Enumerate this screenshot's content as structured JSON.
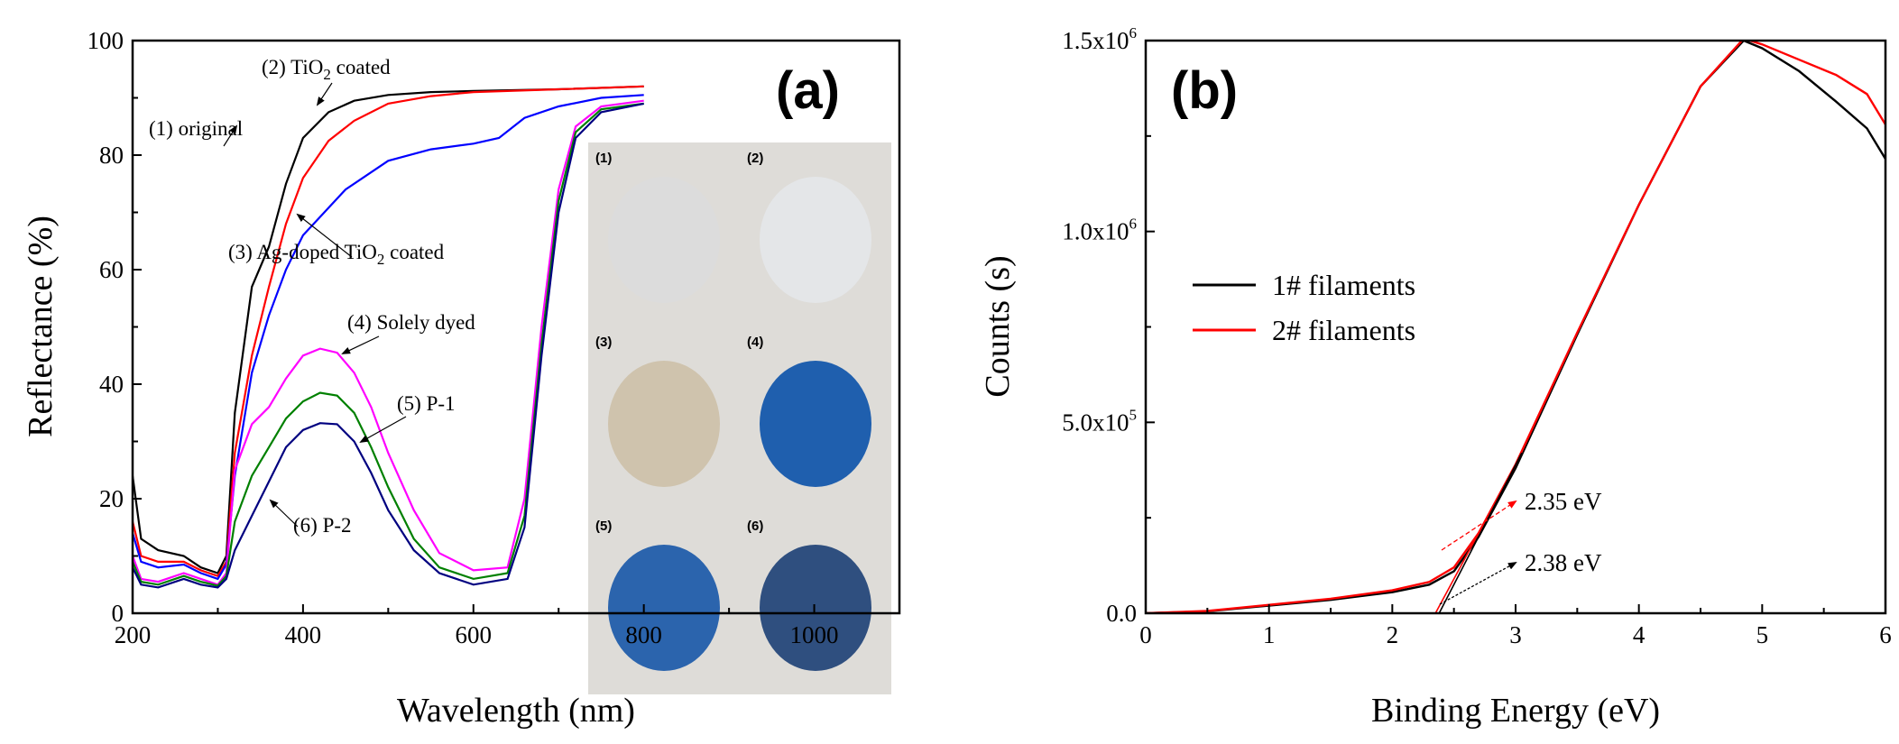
{
  "chart_data": [
    {
      "panel": "(a)",
      "type": "line",
      "xlabel": "Wavelength (nm)",
      "ylabel": "Reflectance (%)",
      "xlim": [
        200,
        1100
      ],
      "ylim": [
        0,
        100
      ],
      "xticks": [
        200,
        400,
        600,
        800,
        1000
      ],
      "yticks": [
        0,
        20,
        40,
        60,
        80,
        100
      ],
      "colors": {
        "1": "#000000",
        "2": "#ff0000",
        "3": "#0000ff",
        "4": "#ff00ff",
        "5": "#008000",
        "6": "#000080"
      },
      "annotations": [
        {
          "text_pre": "(2) TiO",
          "sub": "2",
          "text_post": " coated",
          "series": "2"
        },
        {
          "text_pre": "(1) original",
          "sub": "",
          "text_post": "",
          "series": "1"
        },
        {
          "text_pre": "(3) Ag-doped TiO",
          "sub": "2",
          "text_post": " coated",
          "series": "3"
        },
        {
          "text_pre": "(4) Solely dyed",
          "sub": "",
          "text_post": "",
          "series": "4"
        },
        {
          "text_pre": "(5) P-1",
          "sub": "",
          "text_post": "",
          "series": "5"
        },
        {
          "text_pre": "(6) P-2",
          "sub": "",
          "text_post": "",
          "series": "6"
        }
      ],
      "inset_labels": [
        "(1)",
        "(2)",
        "(3)",
        "(4)",
        "(5)",
        "(6)"
      ],
      "inset_colors": [
        "#dcdcdc",
        "#e4e6e8",
        "#cfc3ad",
        "#1f5fae",
        "#2b64ad",
        "#2f4f7f"
      ],
      "series": [
        {
          "id": "1",
          "x": [
            200,
            210,
            230,
            260,
            280,
            300,
            310,
            320,
            340,
            360,
            380,
            400,
            430,
            460,
            500,
            550,
            600,
            700,
            800
          ],
          "y": [
            24,
            13,
            11,
            10,
            8,
            7,
            10,
            35,
            57,
            64,
            75,
            83,
            87.5,
            89.5,
            90.5,
            91,
            91.2,
            91.5,
            92
          ]
        },
        {
          "id": "2",
          "x": [
            200,
            210,
            230,
            260,
            280,
            300,
            310,
            320,
            340,
            360,
            380,
            400,
            430,
            460,
            500,
            550,
            600,
            700,
            800
          ],
          "y": [
            16,
            10,
            9,
            9,
            7.5,
            6.5,
            9,
            28,
            45,
            57,
            68,
            76,
            82.5,
            86,
            89,
            90.3,
            91,
            91.5,
            92
          ]
        },
        {
          "id": "3",
          "x": [
            200,
            210,
            230,
            260,
            280,
            300,
            310,
            320,
            340,
            360,
            380,
            400,
            450,
            500,
            550,
            600,
            630,
            660,
            700,
            750,
            800
          ],
          "y": [
            14,
            9,
            8,
            8.5,
            7,
            6,
            8.5,
            24,
            42,
            52,
            60,
            66,
            74,
            79,
            81,
            82,
            83,
            86.5,
            88.5,
            90,
            90.5
          ]
        },
        {
          "id": "4",
          "x": [
            200,
            210,
            230,
            260,
            280,
            300,
            310,
            320,
            340,
            360,
            380,
            400,
            420,
            440,
            460,
            480,
            500,
            530,
            560,
            600,
            640,
            660,
            680,
            700,
            720,
            750,
            800
          ],
          "y": [
            10,
            6,
            5.5,
            7,
            6,
            5,
            7,
            25,
            33,
            36,
            41,
            45,
            46.2,
            45.5,
            42,
            36,
            28,
            18,
            10.5,
            7.5,
            8,
            20,
            50,
            74,
            85,
            88.5,
            89.5
          ]
        },
        {
          "id": "5",
          "x": [
            200,
            210,
            230,
            260,
            280,
            300,
            310,
            320,
            340,
            360,
            380,
            400,
            420,
            440,
            460,
            480,
            500,
            530,
            560,
            600,
            640,
            660,
            680,
            700,
            720,
            750,
            800
          ],
          "y": [
            9,
            5.5,
            5,
            6.5,
            5.5,
            4.8,
            6.5,
            16,
            24,
            29,
            34,
            37,
            38.5,
            38,
            35,
            29,
            22,
            13,
            8,
            6,
            7,
            17,
            47,
            72,
            84,
            88,
            89
          ]
        },
        {
          "id": "6",
          "x": [
            200,
            210,
            230,
            260,
            280,
            300,
            310,
            320,
            340,
            360,
            380,
            400,
            420,
            440,
            460,
            480,
            500,
            530,
            560,
            600,
            640,
            660,
            680,
            700,
            720,
            750,
            800
          ],
          "y": [
            8,
            5,
            4.5,
            6,
            5,
            4.5,
            6,
            11,
            17,
            23,
            29,
            32,
            33.2,
            33,
            30,
            24.5,
            18,
            11,
            7,
            5,
            6,
            15,
            45,
            70,
            83,
            87.5,
            89
          ]
        }
      ]
    },
    {
      "panel": "(b)",
      "type": "line",
      "xlabel": "Binding Energy (eV)",
      "ylabel": "Counts (s)",
      "xlim": [
        0,
        6
      ],
      "ylim": [
        0,
        1500000
      ],
      "xticks": [
        0,
        1,
        2,
        3,
        4,
        5,
        6
      ],
      "yticks": [
        {
          "value": 0,
          "mantissa": "0.0",
          "exp": ""
        },
        {
          "value": 500000,
          "mantissa": "5.0x10",
          "exp": "5"
        },
        {
          "value": 1000000,
          "mantissa": "1.0x10",
          "exp": "6"
        },
        {
          "value": 1500000,
          "mantissa": "1.5x10",
          "exp": "6"
        }
      ],
      "legend": {
        "position": "middle-left",
        "entries": [
          {
            "label": "1# filaments",
            "color": "#000000"
          },
          {
            "label": "2# filaments",
            "color": "#ff0000"
          }
        ]
      },
      "annotations": [
        {
          "text": "2.35 eV",
          "color": "#ff0000",
          "value": 2.35
        },
        {
          "text": "2.38 eV",
          "color": "#000000",
          "value": 2.38
        }
      ],
      "series": [
        {
          "name": "1# filaments",
          "color": "#000000",
          "x": [
            0,
            0.5,
            1.0,
            1.5,
            2.0,
            2.3,
            2.5,
            2.7,
            3.0,
            3.5,
            4.0,
            4.5,
            4.85,
            5.0,
            5.3,
            5.6,
            5.85,
            6.0
          ],
          "y": [
            0,
            5000,
            20000,
            35000,
            55000,
            75000,
            110000,
            200000,
            380000,
            730000,
            1070000,
            1380000,
            1500000,
            1480000,
            1420000,
            1340000,
            1270000,
            1190000
          ]
        },
        {
          "name": "2# filaments",
          "color": "#ff0000",
          "x": [
            0,
            0.5,
            1.0,
            1.5,
            2.0,
            2.3,
            2.5,
            2.7,
            3.0,
            3.5,
            4.0,
            4.5,
            4.85,
            5.0,
            5.3,
            5.6,
            5.85,
            6.0
          ],
          "y": [
            0,
            6000,
            22000,
            38000,
            60000,
            82000,
            120000,
            210000,
            390000,
            735000,
            1070000,
            1380000,
            1505000,
            1490000,
            1450000,
            1410000,
            1360000,
            1280000
          ]
        }
      ]
    }
  ]
}
